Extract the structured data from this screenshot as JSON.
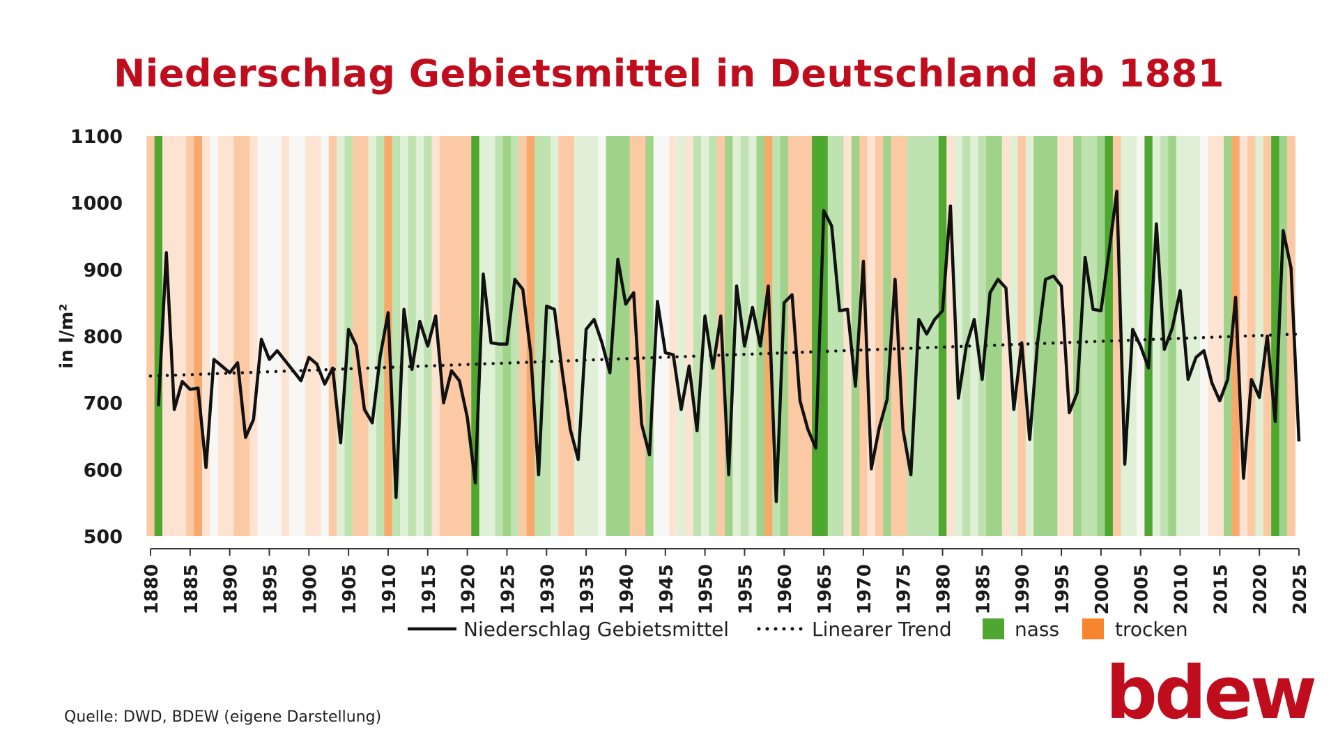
{
  "title": "Niederschlag Gebietsmittel in Deutschland ab 1881",
  "source": "Quelle: DWD, BDEW (eigene Darstellung)",
  "logo": "bdew",
  "colors": {
    "title": "#c00d1e",
    "wet": "#4ea72e",
    "dry": "#f7842f",
    "line": "#111111"
  },
  "chart_data": {
    "type": "line",
    "title": "Niederschlag Gebietsmittel in Deutschland ab 1881",
    "xlabel": "",
    "ylabel": "in l/m²",
    "ylim": [
      500,
      1100
    ],
    "y_ticks": [
      500,
      600,
      700,
      800,
      900,
      1000,
      1100
    ],
    "xlim": [
      1880,
      2025
    ],
    "x_ticks": [
      1880,
      1885,
      1890,
      1895,
      1900,
      1905,
      1910,
      1915,
      1920,
      1925,
      1930,
      1935,
      1940,
      1945,
      1950,
      1955,
      1960,
      1965,
      1970,
      1975,
      1980,
      1985,
      1990,
      1995,
      2000,
      2005,
      2010,
      2015,
      2020,
      2025
    ],
    "grid": false,
    "legend_position": "bottom",
    "legend": [
      {
        "label": "Niederschlag Gebietsmittel",
        "kind": "line"
      },
      {
        "label": "Linearer Trend",
        "kind": "dotted"
      },
      {
        "label": "nass",
        "kind": "box",
        "color": "#4ea72e"
      },
      {
        "label": "trocken",
        "kind": "box",
        "color": "#f7842f"
      }
    ],
    "series": [
      {
        "name": "Niederschlag Gebietsmittel",
        "x": [
          1881,
          1882,
          1883,
          1884,
          1885,
          1886,
          1887,
          1888,
          1889,
          1890,
          1891,
          1892,
          1893,
          1894,
          1895,
          1896,
          1897,
          1898,
          1899,
          1900,
          1901,
          1902,
          1903,
          1904,
          1905,
          1906,
          1907,
          1908,
          1909,
          1910,
          1911,
          1912,
          1913,
          1914,
          1915,
          1916,
          1917,
          1918,
          1919,
          1920,
          1921,
          1922,
          1923,
          1924,
          1925,
          1926,
          1927,
          1928,
          1929,
          1930,
          1931,
          1932,
          1933,
          1934,
          1935,
          1936,
          1937,
          1938,
          1939,
          1940,
          1941,
          1942,
          1943,
          1944,
          1945,
          1946,
          1947,
          1948,
          1949,
          1950,
          1951,
          1952,
          1953,
          1954,
          1955,
          1956,
          1957,
          1958,
          1959,
          1960,
          1961,
          1962,
          1963,
          1964,
          1965,
          1966,
          1967,
          1968,
          1969,
          1970,
          1971,
          1972,
          1973,
          1974,
          1975,
          1976,
          1977,
          1978,
          1979,
          1980,
          1981,
          1982,
          1983,
          1984,
          1985,
          1986,
          1987,
          1988,
          1989,
          1990,
          1991,
          1992,
          1993,
          1994,
          1995,
          1996,
          1997,
          1998,
          1999,
          2000,
          2001,
          2002,
          2003,
          2004,
          2005,
          2006,
          2007,
          2008,
          2009,
          2010,
          2011,
          2012,
          2013,
          2014,
          2015,
          2016,
          2017,
          2018,
          2019,
          2020,
          2021,
          2022,
          2023,
          2024,
          2025
        ],
        "values": [
          695,
          925,
          690,
          732,
          720,
          722,
          603,
          765,
          755,
          745,
          760,
          648,
          675,
          795,
          765,
          778,
          763,
          748,
          733,
          768,
          758,
          728,
          752,
          640,
          810,
          785,
          690,
          670,
          770,
          835,
          558,
          840,
          750,
          822,
          785,
          830,
          700,
          748,
          733,
          678,
          580,
          893,
          790,
          788,
          788,
          885,
          870,
          775,
          592,
          845,
          840,
          745,
          660,
          615,
          810,
          825,
          790,
          745,
          915,
          848,
          865,
          668,
          622,
          852,
          775,
          772,
          690,
          755,
          658,
          830,
          752,
          830,
          592,
          875,
          785,
          843,
          785,
          875,
          552,
          850,
          862,
          703,
          660,
          632,
          988,
          965,
          838,
          840,
          725,
          912,
          601,
          662,
          705,
          885,
          660,
          592,
          825,
          803,
          825,
          838,
          995,
          707,
          785,
          825,
          735,
          865,
          885,
          872,
          690,
          790,
          645,
          790,
          885,
          890,
          875,
          685,
          715,
          918,
          840,
          838,
          925,
          1017,
          608,
          810,
          785,
          752,
          968,
          780,
          812,
          868,
          735,
          768,
          778,
          730,
          703,
          735,
          858,
          587,
          735,
          708,
          800,
          672,
          958,
          902,
          642
        ]
      },
      {
        "name": "Linearer Trend",
        "style": "dotted",
        "x": [
          1880,
          2025
        ],
        "values": [
          740,
          803
        ]
      }
    ],
    "year_classes": {
      "note": "colour stripes per year: positive = nass (green), negative = trocken (orange); level 1 light to 4 dark",
      "start_year": 1880,
      "levels": [
        -2,
        4,
        -1,
        -1,
        -1,
        -2,
        -3,
        -1,
        0,
        -1,
        -1,
        -2,
        -2,
        -1,
        0,
        0,
        0,
        -1,
        0,
        0,
        -1,
        -1,
        0,
        -2,
        1,
        2,
        -2,
        -2,
        1,
        2,
        -3,
        2,
        1,
        2,
        1,
        2,
        -1,
        -2,
        -2,
        -2,
        -2,
        4,
        1,
        1,
        2,
        3,
        2,
        -2,
        -3,
        2,
        2,
        1,
        -2,
        -2,
        1,
        1,
        1,
        0,
        3,
        3,
        3,
        -2,
        -2,
        3,
        0,
        0,
        -1,
        1,
        -1,
        2,
        1,
        2,
        -2,
        3,
        1,
        2,
        1,
        3,
        -3,
        2,
        3,
        -2,
        -2,
        -2,
        4,
        4,
        2,
        2,
        -1,
        3,
        -2,
        -1,
        -2,
        3,
        -2,
        -2,
        2,
        2,
        2,
        2,
        4,
        -1,
        1,
        2,
        1,
        2,
        3,
        3,
        -1,
        1,
        -2,
        1,
        3,
        3,
        3,
        -1,
        -1,
        3,
        2,
        2,
        3,
        4,
        -2,
        1,
        1,
        0,
        4,
        1,
        2,
        3,
        1,
        1,
        1,
        0,
        -1,
        -1,
        3,
        -3,
        -1,
        -2,
        1,
        -2,
        4,
        3,
        -2
      ]
    }
  }
}
